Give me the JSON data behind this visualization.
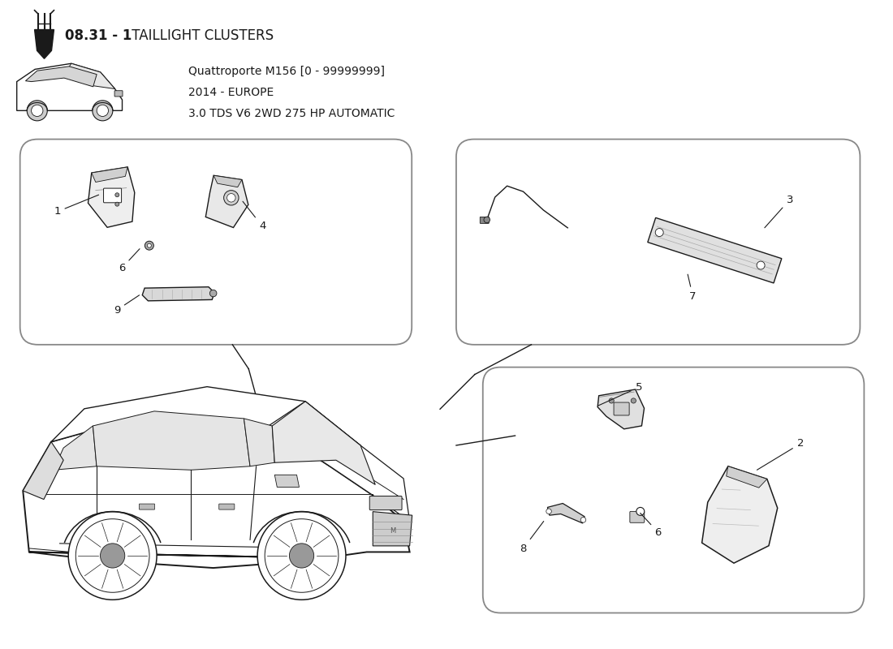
{
  "title_bold": "08.31 - 1",
  "title_light": " TAILLIGHT CLUSTERS",
  "car_info_line1": "Quattroporte M156 [0 - 99999999]",
  "car_info_line2": "2014 - EUROPE",
  "car_info_line3": "3.0 TDS V6 2WD 275 HP AUTOMATIC",
  "background_color": "#ffffff",
  "line_color": "#1a1a1a",
  "font_size_title_bold": 12,
  "font_size_title_light": 12,
  "font_size_info": 10,
  "font_size_label": 10
}
